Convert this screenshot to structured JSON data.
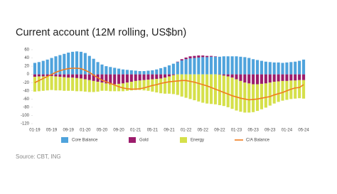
{
  "chart_data": {
    "type": "bar",
    "stacked": true,
    "title": "Current account (12M rolling, US$bn)",
    "source": "Source: CBT, ING",
    "categories": [
      "01-19",
      null,
      null,
      null,
      "05-19",
      null,
      null,
      null,
      "09-19",
      null,
      null,
      null,
      "01-20",
      null,
      null,
      null,
      "05-20",
      null,
      null,
      null,
      "09-20",
      null,
      null,
      null,
      "01-21",
      null,
      null,
      null,
      "05-21",
      null,
      null,
      null,
      "09-21",
      null,
      null,
      null,
      "01-22",
      null,
      null,
      null,
      "05-22",
      null,
      null,
      null,
      "09-22",
      null,
      null,
      null,
      "01-23",
      null,
      null,
      null,
      "05-23",
      null,
      null,
      null,
      "09-23",
      null,
      null,
      null,
      "01-24",
      null,
      null,
      null,
      "05-24"
    ],
    "series": [
      {
        "name": "Core Balance",
        "type": "bar",
        "color": "#4fa3dc",
        "values": [
          28,
          30,
          33,
          36,
          40,
          44,
          47,
          50,
          53,
          55,
          56,
          55,
          52,
          45,
          38,
          30,
          24,
          20,
          18,
          16,
          14,
          12,
          11,
          10,
          9,
          8,
          8,
          9,
          10,
          12,
          15,
          18,
          22,
          26,
          30,
          34,
          37,
          39,
          40,
          41,
          42,
          42,
          43,
          43,
          43,
          44,
          44,
          44,
          44,
          43,
          42,
          40,
          37,
          35,
          33,
          31,
          30,
          29,
          29,
          28,
          29,
          30,
          31,
          33,
          36
        ]
      },
      {
        "name": "Gold",
        "type": "bar",
        "color": "#9c1c6c",
        "values": [
          -6,
          -5,
          -5,
          -4,
          -4,
          -5,
          -6,
          -7,
          -8,
          -8,
          -9,
          -10,
          -12,
          -14,
          -16,
          -18,
          -20,
          -22,
          -24,
          -24,
          -23,
          -22,
          -20,
          -18,
          -16,
          -15,
          -14,
          -13,
          -12,
          -11,
          -10,
          -8,
          -5,
          -2,
          1,
          3,
          4,
          5,
          5,
          5,
          4,
          3,
          2,
          1,
          -1,
          -3,
          -5,
          -8,
          -12,
          -16,
          -20,
          -22,
          -24,
          -24,
          -23,
          -22,
          -20,
          -18,
          -17,
          -16,
          -16,
          -15,
          -15,
          -14,
          -14
        ]
      },
      {
        "name": "Energy",
        "type": "bar",
        "color": "#d5e04a",
        "values": [
          -36,
          -36,
          -35,
          -35,
          -34,
          -34,
          -33,
          -33,
          -32,
          -32,
          -32,
          -31,
          -30,
          -29,
          -27,
          -24,
          -20,
          -18,
          -17,
          -17,
          -18,
          -19,
          -20,
          -21,
          -22,
          -23,
          -25,
          -27,
          -30,
          -33,
          -36,
          -39,
          -42,
          -46,
          -50,
          -54,
          -57,
          -60,
          -63,
          -66,
          -69,
          -71,
          -72,
          -73,
          -74,
          -74,
          -75,
          -76,
          -76,
          -75,
          -73,
          -71,
          -68,
          -65,
          -62,
          -59,
          -56,
          -53,
          -50,
          -48,
          -46,
          -45,
          -44,
          -44,
          -45
        ]
      },
      {
        "name": "C/A Balance",
        "type": "line",
        "color": "#f07c1e",
        "values": [
          -20,
          -15,
          -10,
          -5,
          0,
          5,
          9,
          12,
          14,
          15,
          15,
          14,
          10,
          5,
          -2,
          -8,
          -14,
          -18,
          -22,
          -26,
          -30,
          -33,
          -35,
          -36,
          -36,
          -35,
          -33,
          -30,
          -27,
          -25,
          -22,
          -20,
          -18,
          -17,
          -16,
          -15,
          -15,
          -17,
          -19,
          -22,
          -25,
          -28,
          -32,
          -36,
          -40,
          -44,
          -48,
          -52,
          -55,
          -58,
          -60,
          -62,
          -61,
          -60,
          -58,
          -56,
          -54,
          -50,
          -47,
          -44,
          -40,
          -36,
          -33,
          -32,
          -25
        ]
      }
    ],
    "ylim": [
      -120,
      60
    ],
    "yticks": [
      -120,
      -100,
      -80,
      -60,
      -40,
      -20,
      0,
      20,
      40,
      60
    ],
    "grid": false
  }
}
